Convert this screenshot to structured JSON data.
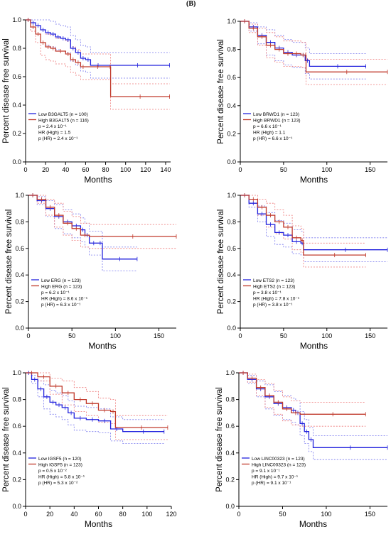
{
  "figure": {
    "panel_label": "(B)"
  },
  "colors": {
    "low": "#2222dd",
    "high": "#c0392b",
    "ci_low": "#7777ee",
    "ci_high": "#ee7777",
    "axis": "#000000"
  },
  "chart_data": [
    {
      "type": "line",
      "ylabel": "Percent disease free survival",
      "xlabel": "Months",
      "xlim": [
        0,
        145
      ],
      "ylim": [
        0,
        1.0
      ],
      "xticks": [
        0,
        20,
        40,
        60,
        80,
        100,
        120,
        140
      ],
      "yticks": [
        0.0,
        0.2,
        0.4,
        0.6,
        0.8,
        1.0
      ],
      "legend": [
        "Low B3GALT5 (n = 100)",
        "High B3GALT5 (n = 116)",
        "p = 2.4 x 10⁻¹",
        "HR (High) = 1.5",
        "p (HR) = 2.4 x 10⁻¹"
      ],
      "series": [
        {
          "name": "Low B3GALT5",
          "x": [
            0,
            5,
            10,
            15,
            20,
            25,
            30,
            35,
            40,
            45,
            50,
            55,
            60,
            65,
            80,
            144
          ],
          "y": [
            1.0,
            0.98,
            0.96,
            0.93,
            0.91,
            0.9,
            0.88,
            0.87,
            0.86,
            0.8,
            0.77,
            0.73,
            0.72,
            0.68,
            0.68,
            0.68
          ]
        },
        {
          "name": "High B3GALT5",
          "x": [
            0,
            5,
            10,
            15,
            20,
            25,
            30,
            40,
            45,
            50,
            55,
            60,
            84,
            85,
            144
          ],
          "y": [
            1.0,
            0.95,
            0.9,
            0.84,
            0.81,
            0.8,
            0.78,
            0.76,
            0.72,
            0.7,
            0.67,
            0.67,
            0.67,
            0.46,
            0.46
          ]
        }
      ]
    },
    {
      "type": "line",
      "ylabel": "Percent disease free survival",
      "xlabel": "Months",
      "xlim": [
        0,
        170
      ],
      "ylim": [
        0,
        1.0
      ],
      "xticks": [
        0,
        50,
        100,
        150
      ],
      "yticks": [
        0.0,
        0.2,
        0.4,
        0.6,
        0.8,
        1.0
      ],
      "legend": [
        "Low BRWD1 (n = 123)",
        "High BRWD1 (n = 123)",
        "p = 6.6 x 10⁻¹",
        "HR (High) = 1.1",
        "p (HR) = 6.6 x 10⁻¹"
      ],
      "series": [
        {
          "name": "Low BRWD1",
          "x": [
            0,
            10,
            20,
            30,
            40,
            50,
            60,
            70,
            75,
            80,
            145
          ],
          "y": [
            1.0,
            0.96,
            0.9,
            0.85,
            0.81,
            0.78,
            0.76,
            0.76,
            0.72,
            0.68,
            0.68
          ]
        },
        {
          "name": "High BRWD1",
          "x": [
            0,
            10,
            20,
            30,
            40,
            50,
            60,
            70,
            75,
            76,
            170
          ],
          "y": [
            1.0,
            0.95,
            0.89,
            0.83,
            0.8,
            0.77,
            0.77,
            0.76,
            0.76,
            0.64,
            0.64
          ]
        }
      ]
    },
    {
      "type": "line",
      "ylabel": "Percent disease free survival",
      "xlabel": "Months",
      "xlim": [
        0,
        170
      ],
      "ylim": [
        0,
        1.0
      ],
      "xticks": [
        0,
        50,
        100,
        150
      ],
      "yticks": [
        0.0,
        0.2,
        0.4,
        0.6,
        0.8,
        1.0
      ],
      "legend": [
        "Low ERG (n = 123)",
        "High ERG (n = 123)",
        "p = 6.2 x 10⁻¹",
        "HR (High) = 8.6 x 10⁻¹",
        "p (HR) = 6.3 x 10⁻¹"
      ],
      "series": [
        {
          "name": "Low ERG",
          "x": [
            0,
            10,
            20,
            30,
            40,
            50,
            60,
            65,
            70,
            80,
            85,
            125
          ],
          "y": [
            1.0,
            0.96,
            0.9,
            0.84,
            0.8,
            0.77,
            0.74,
            0.7,
            0.64,
            0.64,
            0.52,
            0.52
          ]
        },
        {
          "name": "High ERG",
          "x": [
            0,
            10,
            20,
            30,
            40,
            50,
            60,
            70,
            170
          ],
          "y": [
            1.0,
            0.97,
            0.91,
            0.85,
            0.79,
            0.75,
            0.7,
            0.69,
            0.69
          ]
        }
      ]
    },
    {
      "type": "line",
      "ylabel": "Percent disease free survival",
      "xlabel": "Months",
      "xlim": [
        0,
        170
      ],
      "ylim": [
        0,
        1.0
      ],
      "xticks": [
        0,
        50,
        100,
        150
      ],
      "yticks": [
        0.0,
        0.2,
        0.4,
        0.6,
        0.8,
        1.0
      ],
      "legend": [
        "Low ETS2 (n = 123)",
        "High ETS2 (n = 123)",
        "p = 3.8 x 10⁻¹",
        "HR (High) = 7.8 x 10⁻¹",
        "p (HR) = 3.8 x 10⁻¹"
      ],
      "series": [
        {
          "name": "Low ETS2",
          "x": [
            0,
            10,
            20,
            30,
            40,
            50,
            60,
            70,
            73,
            170
          ],
          "y": [
            1.0,
            0.94,
            0.86,
            0.78,
            0.72,
            0.7,
            0.65,
            0.64,
            0.59,
            0.59
          ]
        },
        {
          "name": "High ETS2",
          "x": [
            0,
            10,
            20,
            30,
            40,
            50,
            60,
            70,
            73,
            145
          ],
          "y": [
            1.0,
            0.97,
            0.91,
            0.85,
            0.8,
            0.76,
            0.68,
            0.66,
            0.55,
            0.55
          ]
        }
      ]
    },
    {
      "type": "line",
      "ylabel": "Percent disease free survival",
      "xlabel": "Months",
      "xlim": [
        0,
        120
      ],
      "ylim": [
        0,
        1.0
      ],
      "xticks": [
        0,
        20,
        40,
        60,
        80,
        100,
        120
      ],
      "yticks": [
        0.0,
        0.2,
        0.4,
        0.6,
        0.8,
        1.0
      ],
      "legend": [
        "Low IGSF5 (n = 120)",
        "High IGSF5 (n = 123)",
        "p = 0.5 x 10⁻²",
        "HR (High) = 5.8 x 10⁻¹",
        "p (HR) = 5.3 x 10⁻²"
      ],
      "series": [
        {
          "name": "Low IGSF5",
          "x": [
            0,
            5,
            10,
            15,
            20,
            25,
            30,
            35,
            40,
            50,
            60,
            70,
            80,
            114
          ],
          "y": [
            1.0,
            0.95,
            0.88,
            0.82,
            0.78,
            0.76,
            0.74,
            0.7,
            0.66,
            0.65,
            0.64,
            0.58,
            0.56,
            0.56
          ]
        },
        {
          "name": "High IGSF5",
          "x": [
            0,
            10,
            20,
            30,
            40,
            50,
            60,
            70,
            74,
            117
          ],
          "y": [
            1.0,
            0.97,
            0.9,
            0.85,
            0.8,
            0.77,
            0.72,
            0.71,
            0.59,
            0.59
          ]
        }
      ]
    },
    {
      "type": "line",
      "ylabel": "Percent disease free survival",
      "xlabel": "Months",
      "xlim": [
        0,
        170
      ],
      "ylim": [
        0,
        1.0
      ],
      "xticks": [
        0,
        50,
        100,
        150
      ],
      "yticks": [
        0.0,
        0.2,
        0.4,
        0.6,
        0.8,
        1.0
      ],
      "legend": [
        "Low LINC00323 (n = 123)",
        "High LINC00323 (n = 123)",
        "p = 9.1 x 10⁻¹",
        "HR (High) = 9.7 x 10⁻¹",
        "p (HR) = 9.1 x 10⁻¹"
      ],
      "series": [
        {
          "name": "Low LINC00323",
          "x": [
            0,
            10,
            20,
            30,
            40,
            50,
            60,
            65,
            70,
            75,
            80,
            85,
            170
          ],
          "y": [
            1.0,
            0.95,
            0.88,
            0.82,
            0.77,
            0.74,
            0.72,
            0.7,
            0.62,
            0.56,
            0.5,
            0.44,
            0.44
          ]
        },
        {
          "name": "High LINC00323",
          "x": [
            0,
            10,
            20,
            30,
            40,
            50,
            60,
            70,
            145
          ],
          "y": [
            1.0,
            0.96,
            0.89,
            0.83,
            0.78,
            0.73,
            0.7,
            0.69,
            0.69
          ]
        }
      ]
    }
  ]
}
